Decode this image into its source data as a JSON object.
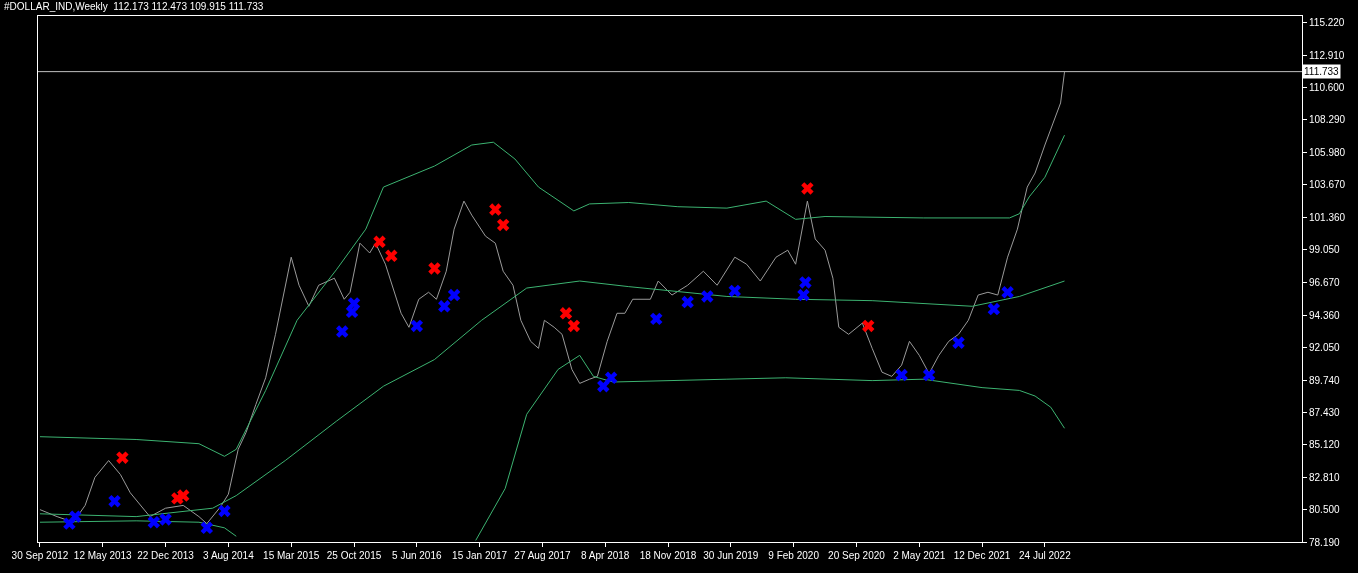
{
  "chart_data": {
    "type": "line",
    "title": "#DOLLAR_IND,Weekly  112.173 112.473 109.915 111.733",
    "xlim": [
      "2012-09-23",
      "2025-01-26"
    ],
    "xticks": [
      {
        "value": "2012-09-30",
        "label": "30 Sep 2012"
      },
      {
        "value": "2013-05-12",
        "label": "12 May 2013"
      },
      {
        "value": "2013-12-22",
        "label": "22 Dec 2013"
      },
      {
        "value": "2014-08-03",
        "label": "3 Aug 2014"
      },
      {
        "value": "2015-03-15",
        "label": "15 Mar 2015"
      },
      {
        "value": "2015-10-25",
        "label": "25 Oct 2015"
      },
      {
        "value": "2016-06-05",
        "label": "5 Jun 2016"
      },
      {
        "value": "2017-01-15",
        "label": "15 Jan 2017"
      },
      {
        "value": "2017-08-27",
        "label": "27 Aug 2017"
      },
      {
        "value": "2018-04-08",
        "label": "8 Apr 2018"
      },
      {
        "value": "2018-11-18",
        "label": "18 Nov 2018"
      },
      {
        "value": "2019-06-30",
        "label": "30 Jun 2019"
      },
      {
        "value": "2020-02-09",
        "label": "9 Feb 2020"
      },
      {
        "value": "2020-09-20",
        "label": "20 Sep 2020"
      },
      {
        "value": "2021-05-02",
        "label": "2 May 2021"
      },
      {
        "value": "2021-12-12",
        "label": "12 Dec 2021"
      },
      {
        "value": "2022-07-24",
        "label": "24 Jul 2022"
      }
    ],
    "ylim": [
      78.19,
      115.7
    ],
    "yticks": [
      {
        "value": 78.19,
        "label": "78.190"
      },
      {
        "value": 80.5,
        "label": "80.500"
      },
      {
        "value": 82.81,
        "label": "82.810"
      },
      {
        "value": 85.12,
        "label": "85.120"
      },
      {
        "value": 87.43,
        "label": "87.430"
      },
      {
        "value": 89.74,
        "label": "89.740"
      },
      {
        "value": 92.05,
        "label": "92.050"
      },
      {
        "value": 94.36,
        "label": "94.360"
      },
      {
        "value": 96.67,
        "label": "96.670"
      },
      {
        "value": 99.05,
        "label": "99.050"
      },
      {
        "value": 101.36,
        "label": "101.360"
      },
      {
        "value": 103.67,
        "label": "103.670"
      },
      {
        "value": 105.98,
        "label": "105.980"
      },
      {
        "value": 108.29,
        "label": "108.290"
      },
      {
        "value": 110.6,
        "label": "110.600"
      },
      {
        "value": 112.91,
        "label": "112.910"
      },
      {
        "value": 115.22,
        "label": "115.220"
      }
    ],
    "ref_lines": [
      {
        "axis": "y",
        "value": 111.733,
        "label": "111.733",
        "color": "#c0c0c0"
      }
    ],
    "grid": false,
    "series": [
      {
        "color": "#9a9a9a",
        "x": [
          "2012-09-30",
          "2012-11-30",
          "2013-01-27",
          "2013-03-10",
          "2013-04-14",
          "2013-06-02",
          "2013-07-14",
          "2013-08-18",
          "2013-10-27",
          "2013-12-22",
          "2014-02-23",
          "2014-04-20",
          "2014-05-18",
          "2014-07-06",
          "2014-08-03",
          "2014-09-07",
          "2014-10-05",
          "2014-11-09",
          "2014-12-14",
          "2015-01-18",
          "2015-03-15",
          "2015-04-12",
          "2015-05-17",
          "2015-06-21",
          "2015-08-16",
          "2015-09-20",
          "2015-10-11",
          "2015-11-15",
          "2015-12-20",
          "2016-01-10",
          "2016-02-14",
          "2016-04-10",
          "2016-05-08",
          "2016-06-12",
          "2016-07-17",
          "2016-08-14",
          "2016-09-18",
          "2016-10-16",
          "2016-11-20",
          "2016-12-18",
          "2017-02-05",
          "2017-03-12",
          "2017-04-09",
          "2017-05-14",
          "2017-06-11",
          "2017-07-16",
          "2017-08-13",
          "2017-09-03",
          "2017-10-08",
          "2017-11-05",
          "2017-12-10",
          "2018-01-07",
          "2018-02-11",
          "2018-03-11",
          "2018-04-15",
          "2018-05-20",
          "2018-06-17",
          "2018-07-15",
          "2018-09-16",
          "2018-10-14",
          "2018-12-02",
          "2019-01-27",
          "2019-03-24",
          "2019-05-12",
          "2019-07-14",
          "2019-08-25",
          "2019-10-13",
          "2019-12-08",
          "2020-01-19",
          "2020-02-16",
          "2020-03-29",
          "2020-04-26",
          "2020-05-31",
          "2020-06-28",
          "2020-07-19",
          "2020-08-23",
          "2020-10-11",
          "2020-11-15",
          "2020-12-20",
          "2021-01-24",
          "2021-02-28",
          "2021-03-28",
          "2021-05-02",
          "2021-06-06",
          "2021-07-11",
          "2021-08-15",
          "2021-09-19",
          "2021-10-24",
          "2021-11-28",
          "2022-01-02",
          "2022-02-06",
          "2022-03-13",
          "2022-04-17",
          "2022-05-22",
          "2022-06-19",
          "2022-07-24",
          "2022-08-21",
          "2022-09-18",
          "2022-10-02"
        ],
        "values": [
          80.5,
          80.0,
          79.6,
          80.8,
          82.8,
          84.0,
          83.0,
          81.7,
          80.0,
          80.6,
          80.8,
          80.0,
          79.5,
          80.7,
          81.6,
          84.8,
          86.0,
          88.0,
          89.9,
          93.0,
          98.5,
          96.5,
          95.0,
          96.5,
          97.0,
          95.5,
          96.0,
          99.5,
          98.8,
          99.5,
          98.0,
          94.5,
          93.5,
          95.5,
          96.0,
          95.5,
          97.5,
          100.5,
          102.5,
          101.5,
          100.0,
          99.5,
          97.5,
          96.5,
          94.0,
          92.5,
          92.0,
          94.0,
          93.5,
          93.0,
          90.5,
          89.5,
          89.8,
          90.0,
          92.5,
          94.5,
          94.5,
          95.5,
          95.5,
          96.8,
          95.8,
          96.5,
          97.5,
          96.5,
          98.5,
          98.0,
          96.8,
          98.5,
          99.0,
          98.0,
          102.5,
          99.8,
          99.0,
          97.0,
          93.5,
          93.0,
          93.8,
          92.0,
          90.3,
          90.0,
          90.8,
          92.5,
          91.5,
          90.2,
          91.5,
          92.5,
          93.0,
          94.0,
          95.8,
          96.0,
          95.8,
          98.5,
          100.5,
          103.5,
          104.5,
          106.5,
          108.0,
          109.5,
          111.7
        ]
      },
      {
        "type": "line",
        "color": "#3cb371",
        "x": [
          "2012-09-30",
          "2013-09-08",
          "2014-04-20",
          "2014-07-20",
          "2014-08-31",
          "2014-12-14",
          "2015-04-05",
          "2015-08-23",
          "2015-12-06",
          "2016-02-07",
          "2016-08-07",
          "2016-12-18",
          "2017-03-05",
          "2017-05-21",
          "2017-08-13",
          "2017-12-17",
          "2018-02-11",
          "2018-07-01",
          "2018-12-23",
          "2019-06-16",
          "2019-11-03",
          "2020-02-16",
          "2020-05-31",
          "2021-05-16",
          "2022-03-20",
          "2022-04-24",
          "2022-05-29",
          "2022-07-24",
          "2022-10-02"
        ],
        "values": [
          85.7,
          85.5,
          85.2,
          84.3,
          84.8,
          89.0,
          94.0,
          97.6,
          100.5,
          103.5,
          105.0,
          106.5,
          106.7,
          105.5,
          103.5,
          101.8,
          102.3,
          102.4,
          102.1,
          102.0,
          102.5,
          101.2,
          101.4,
          101.3,
          101.3,
          101.6,
          102.8,
          104.2,
          107.2
        ]
      },
      {
        "type": "line",
        "color": "#3cb371",
        "x": [
          "2012-09-30",
          "2013-09-08",
          "2014-06-08",
          "2014-08-31",
          "2015-02-22",
          "2015-08-23",
          "2016-02-07",
          "2016-08-07",
          "2017-01-22",
          "2017-07-02",
          "2018-01-07",
          "2018-07-01",
          "2019-06-16",
          "2020-02-16",
          "2020-11-15",
          "2021-11-07",
          "2022-04-24",
          "2022-10-02"
        ],
        "values": [
          80.2,
          80.0,
          80.6,
          81.5,
          84.0,
          86.8,
          89.3,
          91.2,
          94.0,
          96.3,
          96.8,
          96.4,
          95.7,
          95.5,
          95.4,
          95.0,
          95.7,
          96.8
        ]
      },
      {
        "type": "line",
        "color": "#3cb371",
        "x": [
          "2012-09-30",
          "2013-09-08",
          "2014-04-20",
          "2014-07-20",
          "2014-08-31",
          "2016-08-07",
          "2017-01-01",
          "2017-04-16",
          "2017-07-02",
          "2017-10-22",
          "2018-01-07",
          "2018-02-25",
          "2018-05-06",
          "2019-06-16",
          "2020-01-12",
          "2020-11-15",
          "2021-05-16",
          "2021-12-12",
          "2022-04-24",
          "2022-06-19",
          "2022-08-14",
          "2022-10-02"
        ],
        "values": [
          79.6,
          79.7,
          79.6,
          79.2,
          78.6,
          null,
          78.3,
          82.0,
          87.3,
          90.5,
          91.5,
          90.0,
          89.6,
          89.8,
          89.9,
          89.7,
          89.8,
          89.2,
          89.0,
          88.6,
          87.8,
          86.3
        ]
      },
      {
        "type": "scatter",
        "color": "#ff0000",
        "marker": "cross",
        "x": [
          "2013-07-21",
          "2014-02-02",
          "2014-02-23",
          "2016-01-24",
          "2016-03-06",
          "2016-08-07",
          "2017-03-12",
          "2017-04-09",
          "2017-11-19",
          "2017-12-17",
          "2020-03-29",
          "2020-11-01"
        ],
        "values": [
          84.2,
          81.3,
          81.5,
          99.6,
          98.6,
          97.7,
          101.9,
          100.8,
          94.5,
          93.6,
          103.4,
          93.6
        ]
      },
      {
        "type": "scatter",
        "color": "#0000ff",
        "marker": "cross",
        "x": [
          "2013-01-13",
          "2013-02-03",
          "2013-06-23",
          "2013-11-10",
          "2013-12-22",
          "2014-05-18",
          "2014-07-20",
          "2015-09-13",
          "2015-10-18",
          "2015-10-25",
          "2016-06-05",
          "2016-09-11",
          "2016-10-16",
          "2018-04-01",
          "2018-04-29",
          "2018-10-07",
          "2019-01-27",
          "2019-04-07",
          "2019-07-14",
          "2020-03-15",
          "2020-03-22",
          "2021-02-28",
          "2021-06-06",
          "2021-09-19",
          "2022-01-23",
          "2022-03-13"
        ],
        "values": [
          79.5,
          80.0,
          81.1,
          79.6,
          79.8,
          79.2,
          80.4,
          93.2,
          94.6,
          95.2,
          93.6,
          95.0,
          95.8,
          89.3,
          89.9,
          94.1,
          95.3,
          95.7,
          96.1,
          95.8,
          96.7,
          90.1,
          90.1,
          92.4,
          94.8,
          96.0
        ]
      }
    ]
  }
}
